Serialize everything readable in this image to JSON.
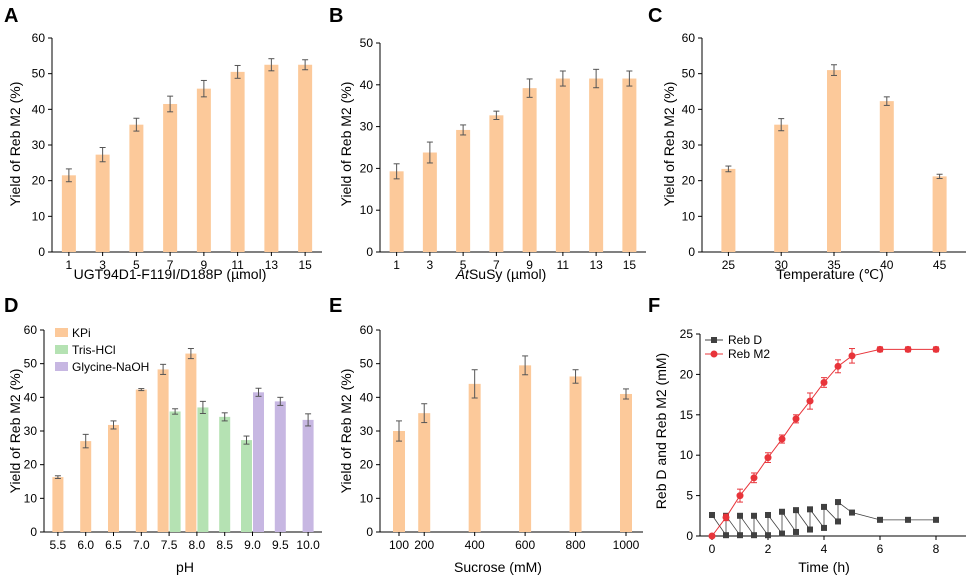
{
  "colors": {
    "kpi": "#fcc99a",
    "tris": "#b5e2b3",
    "gly": "#c7b7e2",
    "rebD": "#404040",
    "rebM2": "#e8343a"
  },
  "chart_data": [
    {
      "panel": "A",
      "type": "bar",
      "xlabel": "UGT94D1-F119I/D188P (µmol)",
      "ylabel": "Yield of Reb M2 (%)",
      "ylim": [
        0,
        60
      ],
      "yticks": [
        "0",
        "10",
        "20",
        "30",
        "40",
        "50",
        "60"
      ],
      "categories": [
        "1",
        "3",
        "5",
        "7",
        "9",
        "11",
        "13",
        "15"
      ],
      "values": [
        21.5,
        27.3,
        35.7,
        41.5,
        45.8,
        50.5,
        52.5,
        52.5
      ],
      "errors": [
        1.8,
        2.0,
        1.8,
        2.2,
        2.3,
        1.8,
        1.7,
        1.4
      ]
    },
    {
      "panel": "B",
      "type": "bar",
      "xlabel_italic": "At",
      "xlabel": "SuSy (µmol)",
      "ylabel": "Yield of Reb M2 (%)",
      "ylim": [
        0,
        50
      ],
      "yticks": [
        "0",
        "10",
        "20",
        "30",
        "40",
        "50"
      ],
      "categories": [
        "1",
        "3",
        "5",
        "7",
        "9",
        "11",
        "13",
        "15"
      ],
      "values": [
        19.3,
        23.8,
        29.2,
        32.7,
        39.2,
        41.5,
        41.5,
        41.5
      ],
      "errors": [
        1.8,
        2.5,
        1.2,
        1.0,
        2.2,
        1.8,
        2.2,
        1.8
      ]
    },
    {
      "panel": "C",
      "type": "bar",
      "xlabel": "Temperature (℃)",
      "ylabel": "Yield of Reb M2 (%)",
      "ylim": [
        0,
        60
      ],
      "yticks": [
        "0",
        "10",
        "20",
        "30",
        "40",
        "50",
        "60"
      ],
      "categories": [
        "25",
        "30",
        "35",
        "40",
        "45"
      ],
      "values": [
        23.3,
        35.7,
        51.0,
        42.3,
        21.2
      ],
      "errors": [
        0.8,
        1.7,
        1.5,
        1.2,
        0.6
      ]
    },
    {
      "panel": "D",
      "type": "bar",
      "xlabel": "pH",
      "ylabel": "Yield of Reb M2 (%)",
      "ylim": [
        0,
        60
      ],
      "yticks": [
        "0",
        "10",
        "20",
        "30",
        "40",
        "50",
        "60"
      ],
      "categories": [
        "5.5",
        "6.0",
        "6.5",
        "7.0",
        "7.5",
        "8.0",
        "8.5",
        "9.0",
        "9.5",
        "10.0"
      ],
      "series": [
        {
          "name": "KPi",
          "x": [
            5.5,
            6.0,
            6.5,
            7.0,
            7.5,
            8.0
          ],
          "offset": [
            0,
            0,
            0,
            0,
            -0.5,
            -0.5
          ],
          "values": [
            16.3,
            27.0,
            31.8,
            42.3,
            48.3,
            53.0
          ],
          "errors": [
            0.4,
            2.0,
            1.2,
            0.3,
            1.5,
            1.5
          ]
        },
        {
          "name": "Tris-HCl",
          "x": [
            7.5,
            8.0,
            8.5,
            9.0
          ],
          "offset": [
            0.5,
            0.5,
            0,
            -0.5
          ],
          "values": [
            35.8,
            37.0,
            34.2,
            27.3
          ],
          "errors": [
            0.8,
            1.8,
            1.2,
            1.2
          ]
        },
        {
          "name": "Glycine-NaOH",
          "x": [
            9.0,
            9.5,
            10.0
          ],
          "offset": [
            0.5,
            0,
            0
          ],
          "values": [
            41.5,
            38.8,
            33.3
          ],
          "errors": [
            1.2,
            1.2,
            1.8
          ]
        }
      ]
    },
    {
      "panel": "E",
      "type": "bar",
      "xlabel": "Sucrose (mM)",
      "ylabel": "Yield of Reb M2 (%)",
      "ylim": [
        0,
        60
      ],
      "yticks": [
        "0",
        "10",
        "20",
        "30",
        "40",
        "50",
        "60"
      ],
      "categories": [
        "100",
        "200",
        "400",
        "600",
        "800",
        "1000"
      ],
      "x": [
        100,
        200,
        400,
        600,
        800,
        1000
      ],
      "values": [
        30.0,
        35.3,
        44.0,
        49.5,
        46.2,
        41.0
      ],
      "errors": [
        3.0,
        2.8,
        4.2,
        2.8,
        2.0,
        1.5
      ]
    },
    {
      "panel": "F",
      "type": "line",
      "xlabel": "Time (h)",
      "ylabel": "Reb D and Reb M2 (mM)",
      "xlim": [
        0,
        8
      ],
      "ylim": [
        0,
        25
      ],
      "xticks": [
        "0",
        "2",
        "4",
        "6",
        "8"
      ],
      "yticks": [
        "0",
        "5",
        "10",
        "15",
        "20",
        "25"
      ],
      "series": [
        {
          "name": "Reb D",
          "marker": "square",
          "x": [
            0,
            0.5,
            0.5,
            1,
            1,
            1.5,
            1.5,
            2,
            2,
            2.5,
            2.5,
            3,
            3,
            3.5,
            3.5,
            4,
            4,
            4.5,
            4.5,
            5,
            6,
            7,
            8
          ],
          "values": [
            2.6,
            0.1,
            2.5,
            0.1,
            2.5,
            0.1,
            2.5,
            0.1,
            2.6,
            0.3,
            3.0,
            0.5,
            3.2,
            0.8,
            3.3,
            1.0,
            3.6,
            1.8,
            4.2,
            2.9,
            2.0,
            2.0,
            2.0
          ]
        },
        {
          "name": "Reb M2",
          "marker": "circle",
          "x": [
            0,
            0.5,
            1,
            1.5,
            2,
            2.5,
            3,
            3.5,
            4,
            4.5,
            5,
            6,
            7,
            8
          ],
          "values": [
            0,
            2.3,
            5.0,
            7.2,
            9.7,
            12.0,
            14.5,
            16.7,
            19.0,
            21.0,
            22.3,
            23.1,
            23.1,
            23.1
          ],
          "errors": [
            0,
            0.4,
            0.8,
            0.6,
            0.6,
            0.5,
            0.5,
            1.0,
            0.6,
            0.8,
            0.9,
            0.3,
            0.3,
            0.3
          ]
        }
      ]
    }
  ]
}
